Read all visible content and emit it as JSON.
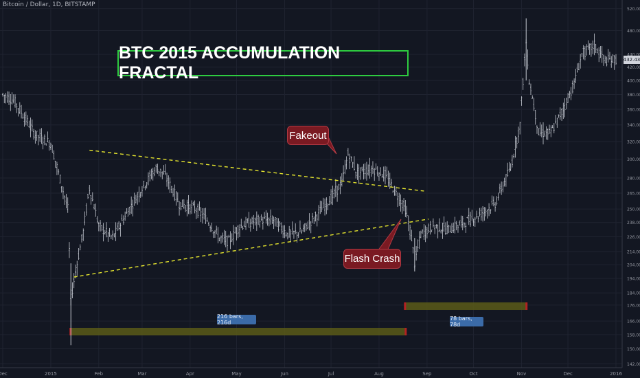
{
  "header": {
    "symbol": "Bitcoin / Dollar, 1D, BITSTAMP"
  },
  "title": "BTC 2015 ACCUMULATION FRACTAL",
  "annotations": {
    "fakeout": "Fakeout",
    "flash_crash": "Flash Crash"
  },
  "ranges": {
    "first": "216 bars, 216d",
    "second": "78 bars, 78d"
  },
  "last_price": "432.43",
  "colors": {
    "background": "#131722",
    "candles": "#c8ccd4",
    "trendline": "#e6e62e",
    "title_border": "#2ecc40",
    "callout": "#7a1a22",
    "range_fill": "#5a5a18",
    "range_edge": "#b22222",
    "badge": "#3b6ba8"
  },
  "chart_data": {
    "type": "candlestick",
    "title": "BTC 2015 ACCUMULATION FRACTAL",
    "x_tick_labels": [
      "Dec",
      "2015",
      "Feb",
      "Mar",
      "Apr",
      "May",
      "Jun",
      "Jul",
      "Aug",
      "Sep",
      "Oct",
      "Nov",
      "Dec",
      "2016"
    ],
    "y_tick_labels": [
      "520.00",
      "480.00",
      "440.00",
      "420.00",
      "400.00",
      "380.00",
      "360.00",
      "340.00",
      "320.00",
      "300.00",
      "280.00",
      "265.00",
      "250.00",
      "238.00",
      "226.00",
      "214.00",
      "204.00",
      "194.00",
      "184.00",
      "176.00",
      "166.00",
      "158.00",
      "150.00",
      "142.00"
    ],
    "y_scale": "log",
    "ylim": [
      140,
      530
    ],
    "price_path": [
      [
        "2014-12-01",
        380
      ],
      [
        "2014-12-08",
        372
      ],
      [
        "2014-12-15",
        350
      ],
      [
        "2014-12-22",
        328
      ],
      [
        "2015-01-01",
        318
      ],
      [
        "2015-01-06",
        285
      ],
      [
        "2015-01-12",
        250
      ],
      [
        "2015-01-14",
        180
      ],
      [
        "2015-01-18",
        205
      ],
      [
        "2015-01-22",
        230
      ],
      [
        "2015-01-26",
        270
      ],
      [
        "2015-02-01",
        235
      ],
      [
        "2015-02-10",
        225
      ],
      [
        "2015-02-20",
        248
      ],
      [
        "2015-03-01",
        270
      ],
      [
        "2015-03-10",
        290
      ],
      [
        "2015-03-15",
        285
      ],
      [
        "2015-03-25",
        255
      ],
      [
        "2015-04-05",
        250
      ],
      [
        "2015-04-12",
        240
      ],
      [
        "2015-04-20",
        225
      ],
      [
        "2015-04-26",
        222
      ],
      [
        "2015-05-03",
        235
      ],
      [
        "2015-05-15",
        240
      ],
      [
        "2015-05-25",
        240
      ],
      [
        "2015-06-03",
        228
      ],
      [
        "2015-06-12",
        230
      ],
      [
        "2015-06-22",
        245
      ],
      [
        "2015-07-01",
        260
      ],
      [
        "2015-07-08",
        275
      ],
      [
        "2015-07-12",
        305
      ],
      [
        "2015-07-18",
        285
      ],
      [
        "2015-07-28",
        290
      ],
      [
        "2015-08-05",
        283
      ],
      [
        "2015-08-12",
        265
      ],
      [
        "2015-08-18",
        250
      ],
      [
        "2015-08-22",
        225
      ],
      [
        "2015-08-24",
        205
      ],
      [
        "2015-08-28",
        228
      ],
      [
        "2015-09-05",
        235
      ],
      [
        "2015-09-15",
        232
      ],
      [
        "2015-09-25",
        238
      ],
      [
        "2015-10-05",
        245
      ],
      [
        "2015-10-15",
        255
      ],
      [
        "2015-10-25",
        290
      ],
      [
        "2015-10-31",
        340
      ],
      [
        "2015-11-04",
        460
      ],
      [
        "2015-11-06",
        400
      ],
      [
        "2015-11-12",
        330
      ],
      [
        "2015-11-20",
        330
      ],
      [
        "2015-11-28",
        360
      ],
      [
        "2015-12-05",
        395
      ],
      [
        "2015-12-10",
        440
      ],
      [
        "2015-12-18",
        455
      ],
      [
        "2015-12-25",
        430
      ],
      [
        "2016-01-01",
        432
      ]
    ],
    "trendlines": [
      {
        "name": "upper",
        "from": [
          "2015-01-26",
          310
        ],
        "to": [
          "2015-08-30",
          267
        ]
      },
      {
        "name": "lower",
        "from": [
          "2015-01-16",
          195
        ],
        "to": [
          "2015-09-02",
          241
        ]
      }
    ],
    "range_markers": [
      {
        "label": "216 bars, 216d",
        "from": "2015-01-14",
        "to": "2015-08-18"
      },
      {
        "label": "78 bars, 78d",
        "from": "2015-08-18",
        "to": "2015-11-04"
      }
    ],
    "last_price": 432.43
  }
}
